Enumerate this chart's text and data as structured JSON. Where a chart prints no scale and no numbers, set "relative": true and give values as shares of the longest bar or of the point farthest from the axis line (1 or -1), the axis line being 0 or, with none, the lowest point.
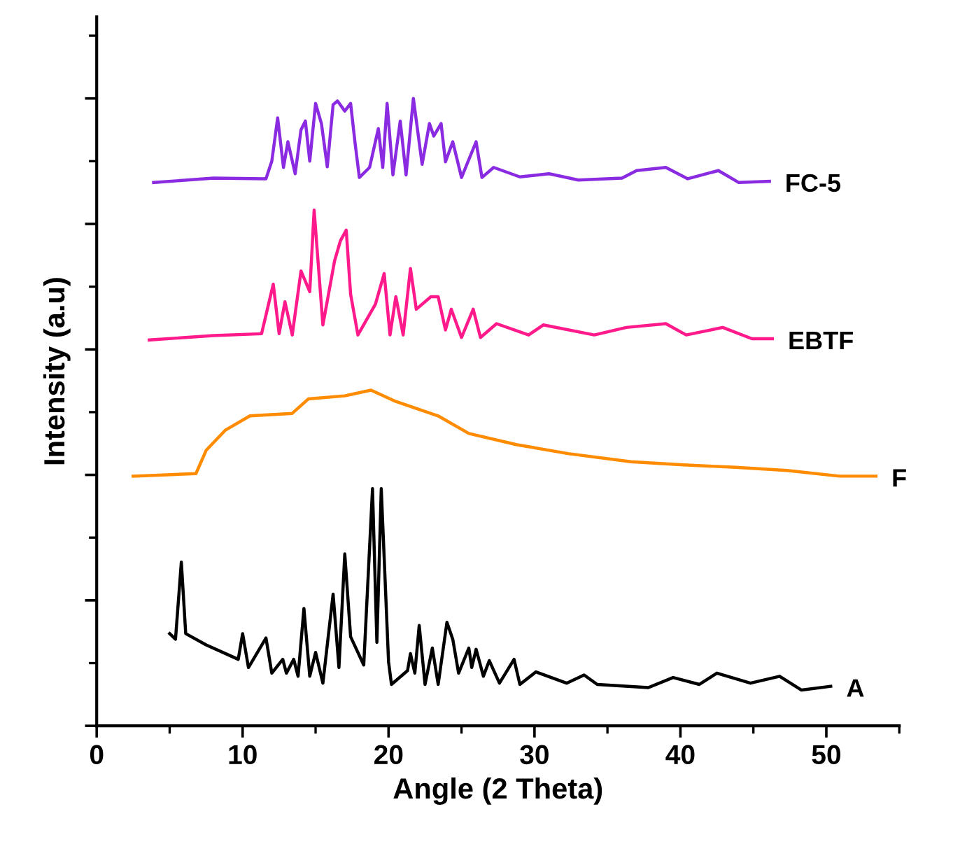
{
  "chart_data": {
    "type": "line",
    "xlabel": "Angle (2 Theta)",
    "ylabel": "Intensity (a.u)",
    "relative": true,
    "tick_labels": "x",
    "grid": false,
    "legend": false,
    "xlim": [
      0,
      55
    ],
    "xticks": [
      0,
      10,
      20,
      30,
      40,
      50
    ],
    "series": [
      {
        "name": "FC-5",
        "color": "#8a2be2",
        "x": [
          3.9,
          8.0,
          11.6,
          12.0,
          12.4,
          12.8,
          13.1,
          13.6,
          14.0,
          14.3,
          14.6,
          15.0,
          15.4,
          15.8,
          16.2,
          16.5,
          17.0,
          17.4,
          17.7,
          18.0,
          18.7,
          19.3,
          19.6,
          19.9,
          20.3,
          20.8,
          21.2,
          21.7,
          22.3,
          22.8,
          23.1,
          23.6,
          23.9,
          24.4,
          25.0,
          26.0,
          26.4,
          27.2,
          29.0,
          31.0,
          33.0,
          36.0,
          37.0,
          39.0,
          40.5,
          42.6,
          44.0,
          46.1
        ],
        "values": [
          0.866,
          0.873,
          0.872,
          0.9,
          0.969,
          0.89,
          0.931,
          0.88,
          0.95,
          0.964,
          0.9,
          0.992,
          0.96,
          0.891,
          0.99,
          0.996,
          0.98,
          0.992,
          0.93,
          0.874,
          0.89,
          0.952,
          0.89,
          0.992,
          0.878,
          0.964,
          0.878,
          1.0,
          0.895,
          0.96,
          0.94,
          0.96,
          0.899,
          0.931,
          0.874,
          0.931,
          0.874,
          0.89,
          0.875,
          0.88,
          0.87,
          0.873,
          0.885,
          0.89,
          0.872,
          0.885,
          0.866,
          0.868
        ]
      },
      {
        "name": "EBTF",
        "color": "#ff1a8c",
        "x": [
          3.6,
          8.0,
          11.3,
          12.1,
          12.5,
          12.9,
          13.4,
          14.0,
          14.6,
          14.9,
          15.5,
          16.3,
          16.7,
          17.1,
          17.4,
          17.9,
          19.1,
          19.7,
          20.1,
          20.5,
          21.0,
          21.5,
          21.9,
          22.9,
          23.4,
          23.9,
          24.3,
          25.0,
          25.8,
          26.3,
          27.4,
          29.6,
          30.6,
          34.1,
          36.3,
          39.0,
          40.4,
          42.9,
          44.9,
          46.3
        ],
        "values": [
          0.615,
          0.622,
          0.625,
          0.704,
          0.625,
          0.676,
          0.623,
          0.725,
          0.692,
          0.822,
          0.639,
          0.741,
          0.773,
          0.79,
          0.688,
          0.623,
          0.672,
          0.721,
          0.623,
          0.684,
          0.623,
          0.729,
          0.664,
          0.684,
          0.684,
          0.631,
          0.664,
          0.619,
          0.664,
          0.619,
          0.641,
          0.623,
          0.639,
          0.623,
          0.635,
          0.641,
          0.623,
          0.635,
          0.617,
          0.617
        ]
      },
      {
        "name": "F",
        "color": "#ff8c00",
        "x": [
          2.5,
          6.8,
          7.5,
          8.8,
          10.5,
          13.4,
          14.5,
          17.0,
          18.8,
          20.5,
          23.4,
          25.5,
          28.8,
          32.3,
          36.6,
          40.2,
          43.8,
          47.3,
          50.9,
          53.4
        ],
        "values": [
          0.398,
          0.402,
          0.439,
          0.471,
          0.494,
          0.498,
          0.521,
          0.526,
          0.535,
          0.517,
          0.494,
          0.466,
          0.448,
          0.434,
          0.421,
          0.416,
          0.412,
          0.407,
          0.398,
          0.398
        ]
      },
      {
        "name": "A",
        "color": "#000000",
        "x": [
          5.0,
          5.4,
          5.8,
          6.1,
          7.5,
          9.7,
          10.0,
          10.4,
          11.6,
          12.0,
          12.75,
          13.0,
          13.5,
          13.8,
          14.2,
          14.6,
          15.0,
          15.5,
          16.2,
          16.6,
          17.0,
          17.4,
          18.3,
          18.9,
          19.2,
          19.5,
          20.0,
          20.2,
          21.3,
          21.5,
          21.8,
          22.1,
          22.5,
          23.0,
          23.4,
          24.0,
          24.4,
          24.8,
          25.5,
          25.7,
          26.0,
          26.5,
          26.9,
          27.6,
          28.6,
          29.0,
          30.1,
          32.2,
          33.4,
          34.3,
          37.8,
          39.5,
          41.3,
          42.5,
          44.8,
          46.8,
          48.3,
          50.3
        ],
        "values": [
          0.147,
          0.138,
          0.261,
          0.147,
          0.129,
          0.106,
          0.147,
          0.093,
          0.14,
          0.084,
          0.106,
          0.084,
          0.106,
          0.079,
          0.187,
          0.079,
          0.117,
          0.068,
          0.21,
          0.093,
          0.274,
          0.142,
          0.097,
          0.378,
          0.133,
          0.378,
          0.102,
          0.066,
          0.088,
          0.115,
          0.084,
          0.16,
          0.066,
          0.124,
          0.066,
          0.165,
          0.138,
          0.084,
          0.124,
          0.093,
          0.122,
          0.079,
          0.104,
          0.068,
          0.106,
          0.066,
          0.086,
          0.068,
          0.081,
          0.066,
          0.061,
          0.077,
          0.066,
          0.084,
          0.068,
          0.079,
          0.057,
          0.063
        ]
      }
    ]
  }
}
